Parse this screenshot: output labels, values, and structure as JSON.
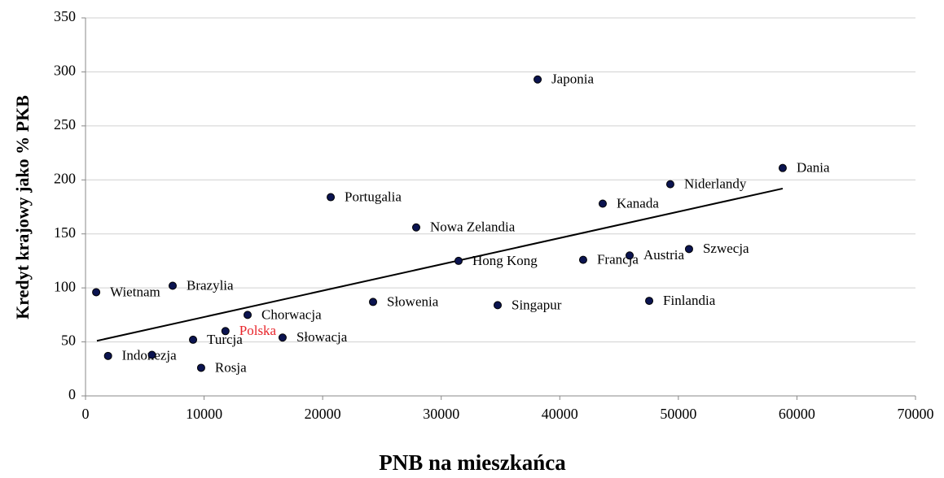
{
  "chart_data": {
    "type": "scatter",
    "x_label": "PNB na mieszkańca",
    "y_label": "Kredyt krajowy jako % PKB",
    "labels": [
      "Wietnam",
      "Indonezja",
      null,
      "Brazylia",
      "Turcja",
      "Rosja",
      "Polska",
      "Chorwacja",
      "Słowacja",
      "Portugalia",
      "Słowenia",
      "Nowa Zelandia",
      "Hong Kong",
      "Singapur",
      "Japonia",
      "Francja",
      "Kanada",
      "Austria",
      "Finlandia",
      "Niderlandy",
      "Szwecja",
      "Dania"
    ],
    "x": [
      900,
      1900,
      5600,
      7350,
      9070,
      9750,
      11800,
      13670,
      16620,
      20680,
      24250,
      27890,
      31460,
      34760,
      38130,
      41970,
      43620,
      45890,
      47540,
      49320,
      50900,
      58800
    ],
    "y": [
      96,
      37,
      38,
      102,
      52,
      26,
      60,
      75,
      54,
      184,
      87,
      156,
      125,
      84,
      293,
      126,
      178,
      130,
      88,
      196,
      136,
      211
    ],
    "color": "#0b1450",
    "highlight_index": 6,
    "highlight_color": "#e8242a",
    "trendline": {
      "x": [
        960,
        58800
      ],
      "y": [
        51,
        192
      ],
      "color": "#000000"
    },
    "xlim": [
      0,
      70000
    ],
    "xticks": [
      0,
      10000,
      20000,
      30000,
      40000,
      50000,
      60000,
      70000
    ],
    "ylim": [
      0,
      350
    ],
    "yticks": [
      0,
      50,
      100,
      150,
      200,
      250,
      300,
      350
    ],
    "grid": true
  }
}
